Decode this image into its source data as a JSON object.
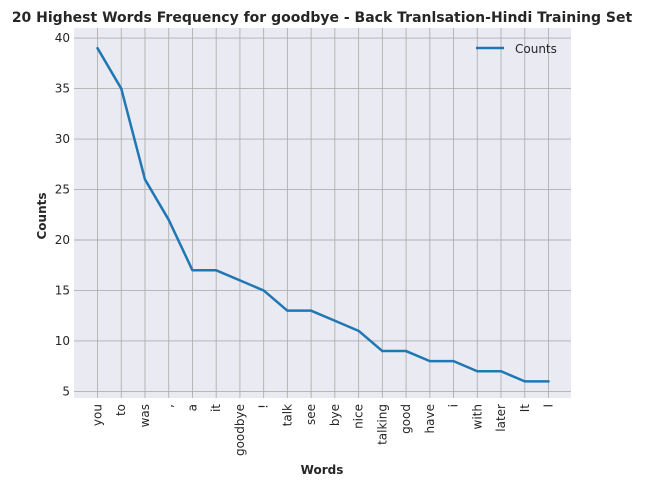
{
  "chart_data": {
    "type": "line",
    "title": "20 Highest Words Frequency for goodbye - Back Tranlsation-Hindi Training Set",
    "xlabel": "Words",
    "ylabel": "Counts",
    "categories": [
      "you",
      "to",
      "was",
      ",",
      "a",
      "it",
      "goodbye",
      "!",
      "talk",
      "see",
      "bye",
      "nice",
      "talking",
      "good",
      "have",
      "i",
      "with",
      "later",
      "It",
      "I"
    ],
    "series": [
      {
        "name": "Counts",
        "values": [
          39,
          35,
          26,
          22,
          17,
          17,
          16,
          15,
          13,
          13,
          12,
          11,
          9,
          9,
          8,
          8,
          7,
          7,
          6,
          6
        ]
      }
    ],
    "yticks": [
      5,
      10,
      15,
      20,
      25,
      30,
      35,
      40
    ],
    "ylim": [
      4.35,
      41.0
    ],
    "grid": true,
    "legend_position": "top-right",
    "colors": {
      "line": "#1f77b4",
      "plot_bg": "#eaeaf2",
      "grid": "#b0b0b0"
    }
  }
}
